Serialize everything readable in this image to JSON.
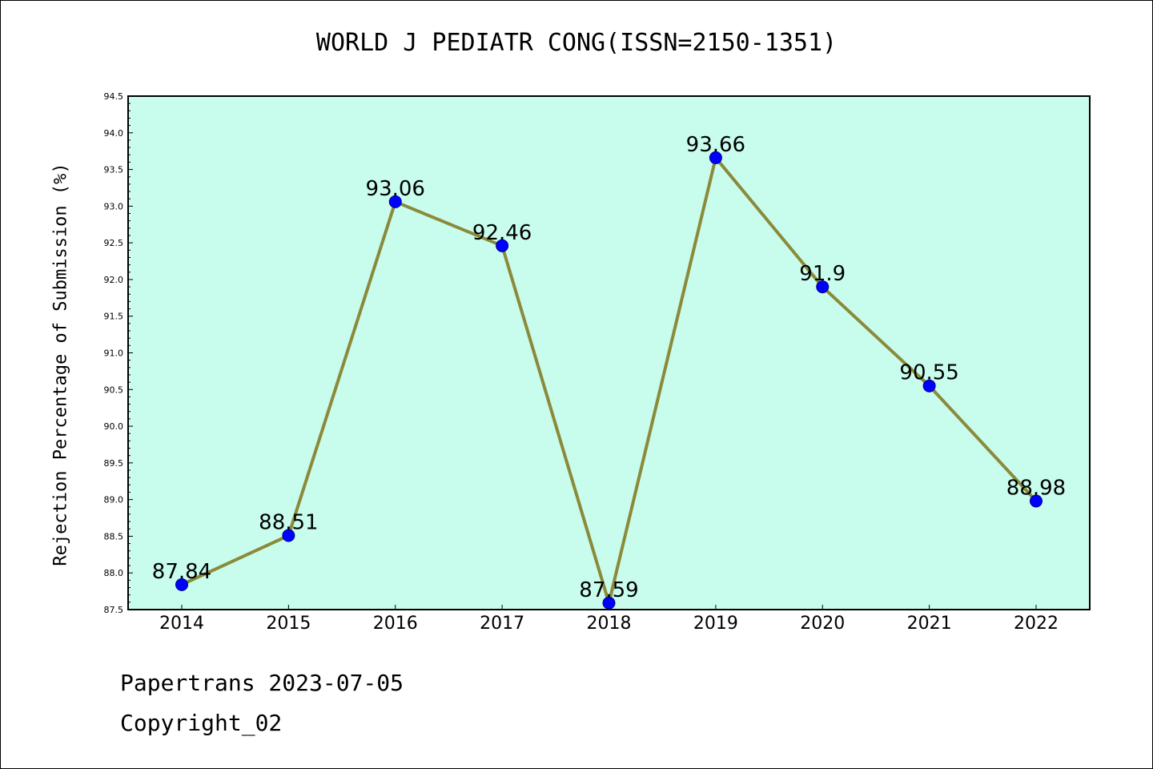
{
  "chart_data": {
    "type": "line",
    "title": "WORLD J PEDIATR CONG(ISSN=2150-1351)",
    "ylabel": "Rejection Percentage of Submission (%)",
    "xlabel": "",
    "categories": [
      "2014",
      "2015",
      "2016",
      "2017",
      "2018",
      "2019",
      "2020",
      "2021",
      "2022"
    ],
    "series": [
      {
        "values": [
          87.84,
          88.51,
          93.06,
          92.46,
          87.59,
          93.66,
          91.9,
          90.55,
          88.98
        ]
      }
    ],
    "data_labels": [
      "87.84",
      "88.51",
      "93.06",
      "92.46",
      "87.59",
      "93.66",
      "91.9",
      "90.55",
      "88.98"
    ],
    "ylim": [
      87.5,
      94.5
    ],
    "yticks": [
      "87.5",
      "88.0",
      "88.5",
      "89.0",
      "89.5",
      "90.0",
      "90.5",
      "91.0",
      "91.5",
      "92.0",
      "92.5",
      "93.0",
      "93.5",
      "94.0",
      "94.5"
    ],
    "grid": false,
    "colors": {
      "plot_background": "#c8fcec",
      "line": "#8b8a3a",
      "marker": "#0000ff"
    }
  },
  "footer": {
    "line1": "Papertrans 2023-07-05",
    "line2": "Copyright_02"
  }
}
